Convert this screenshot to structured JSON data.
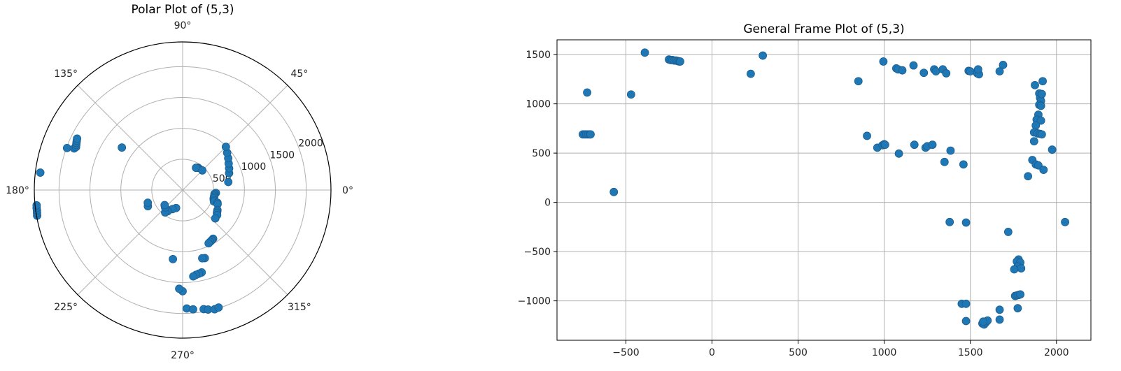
{
  "chart_data": [
    {
      "type": "scatter",
      "projection": "polar",
      "title": "Polar Plot of (5,3)",
      "theta_ticks_deg": [
        0,
        45,
        90,
        135,
        180,
        225,
        270,
        315
      ],
      "theta_labels": [
        "0°",
        "45°",
        "90°",
        "135°",
        "180°",
        "225°",
        "270°",
        "315°"
      ],
      "r_ticks": [
        500,
        1000,
        1500,
        2000
      ],
      "r_labels": [
        "500",
        "1000",
        "1500",
        "2000"
      ],
      "r_max": 2400,
      "r_label_angle_deg": 22.5,
      "grid": true,
      "marker_color": "#1f77b4",
      "points_theta_r": [
        [
          55,
          440
        ],
        [
          57,
          430
        ],
        [
          59,
          420
        ],
        [
          45,
          450
        ],
        [
          10,
          750
        ],
        [
          20,
          800
        ],
        [
          25,
          830
        ],
        [
          30,
          860
        ],
        [
          35,
          900
        ],
        [
          40,
          940
        ],
        [
          45,
          990
        ],
        [
          -5,
          540
        ],
        [
          -7,
          520
        ],
        [
          -10,
          520
        ],
        [
          -12,
          520
        ],
        [
          -15,
          520
        ],
        [
          -18,
          530
        ],
        [
          -20,
          540
        ],
        [
          -20,
          600
        ],
        [
          -22,
          610
        ],
        [
          -30,
          650
        ],
        [
          -32,
          660
        ],
        [
          -34,
          670
        ],
        [
          -36,
          690
        ],
        [
          -41,
          700
        ],
        [
          -58,
          930
        ],
        [
          -60,
          940
        ],
        [
          -62,
          950
        ],
        [
          -64,
          960
        ],
        [
          -72,
          1160
        ],
        [
          -74,
          1150
        ],
        [
          -77,
          1370
        ],
        [
          -79,
          1380
        ],
        [
          -81,
          1390
        ],
        [
          -83,
          1410
        ],
        [
          -88,
          1920
        ],
        [
          -85,
          1940
        ],
        [
          -80,
          1960
        ],
        [
          -78,
          1980
        ],
        [
          -75,
          2000
        ],
        [
          -73,
          1990
        ],
        [
          -90,
          1640
        ],
        [
          -92,
          1600
        ],
        [
          -98,
          1130
        ],
        [
          -110,
          310
        ],
        [
          -118,
          350
        ],
        [
          -125,
          420
        ],
        [
          -128,
          460
        ],
        [
          -135,
          400
        ],
        [
          -140,
          380
        ],
        [
          -155,
          620
        ],
        [
          -160,
          600
        ],
        [
          -170,
          2390
        ],
        [
          -171,
          2385
        ],
        [
          -172,
          2380
        ],
        [
          -173,
          2380
        ],
        [
          -174,
          2375
        ],
        [
          173,
          2320
        ],
        [
          159,
          1880
        ],
        [
          158,
          1860
        ],
        [
          157,
          1870
        ],
        [
          156,
          1880
        ],
        [
          155,
          1890
        ],
        [
          154,
          1900
        ],
        [
          160,
          1990
        ],
        [
          145,
          1200
        ]
      ]
    },
    {
      "type": "scatter",
      "title": "General Frame Plot of (5,3)",
      "xlim": [
        -900,
        2200
      ],
      "ylim": [
        -1400,
        1650
      ],
      "xticks": [
        -500,
        0,
        500,
        1000,
        1500,
        2000
      ],
      "xtick_labels": [
        "−500",
        "0",
        "500",
        "1000",
        "1500",
        "2000"
      ],
      "yticks": [
        -1000,
        -500,
        0,
        500,
        1000,
        1500
      ],
      "ytick_labels": [
        "−1000",
        "−500",
        "0",
        "500",
        "1000",
        "1500"
      ],
      "grid": true,
      "marker_color": "#1f77b4",
      "points": [
        [
          -390,
          1520
        ],
        [
          -250,
          1450
        ],
        [
          -240,
          1445
        ],
        [
          -230,
          1445
        ],
        [
          -220,
          1440
        ],
        [
          -210,
          1440
        ],
        [
          -200,
          1435
        ],
        [
          -190,
          1430
        ],
        [
          -185,
          1430
        ],
        [
          -725,
          1115
        ],
        [
          -470,
          1095
        ],
        [
          -750,
          690
        ],
        [
          -740,
          690
        ],
        [
          -730,
          690
        ],
        [
          -720,
          690
        ],
        [
          -710,
          690
        ],
        [
          -705,
          690
        ],
        [
          -570,
          105
        ],
        [
          225,
          1305
        ],
        [
          295,
          1490
        ],
        [
          850,
          1230
        ],
        [
          995,
          1430
        ],
        [
          1070,
          1360
        ],
        [
          1080,
          1350
        ],
        [
          1105,
          1340
        ],
        [
          1170,
          1390
        ],
        [
          1230,
          1315
        ],
        [
          1290,
          1350
        ],
        [
          1300,
          1330
        ],
        [
          1340,
          1350
        ],
        [
          1360,
          1310
        ],
        [
          1490,
          1335
        ],
        [
          1500,
          1330
        ],
        [
          1540,
          1310
        ],
        [
          1550,
          1300
        ],
        [
          1545,
          1350
        ],
        [
          1670,
          1330
        ],
        [
          1690,
          1395
        ],
        [
          900,
          675
        ],
        [
          960,
          555
        ],
        [
          990,
          580
        ],
        [
          1000,
          590
        ],
        [
          1005,
          585
        ],
        [
          1085,
          495
        ],
        [
          1175,
          585
        ],
        [
          1240,
          555
        ],
        [
          1250,
          570
        ],
        [
          1280,
          585
        ],
        [
          1350,
          410
        ],
        [
          1385,
          525
        ],
        [
          1460,
          385
        ],
        [
          1380,
          -200
        ],
        [
          1475,
          -205
        ],
        [
          1875,
          1190
        ],
        [
          1900,
          1105
        ],
        [
          1905,
          1060
        ],
        [
          1910,
          1030
        ],
        [
          1915,
          1100
        ],
        [
          1920,
          1230
        ],
        [
          1900,
          990
        ],
        [
          1910,
          980
        ],
        [
          1895,
          890
        ],
        [
          1885,
          840
        ],
        [
          1910,
          830
        ],
        [
          1880,
          780
        ],
        [
          1870,
          710
        ],
        [
          1890,
          700
        ],
        [
          1905,
          695
        ],
        [
          1915,
          690
        ],
        [
          1870,
          620
        ],
        [
          1975,
          535
        ],
        [
          1860,
          430
        ],
        [
          1880,
          385
        ],
        [
          1895,
          375
        ],
        [
          1925,
          330
        ],
        [
          1835,
          265
        ],
        [
          1720,
          -300
        ],
        [
          2050,
          -200
        ],
        [
          1780,
          -580
        ],
        [
          1770,
          -600
        ],
        [
          1790,
          -610
        ],
        [
          1775,
          -650
        ],
        [
          1795,
          -670
        ],
        [
          1755,
          -680
        ],
        [
          1760,
          -950
        ],
        [
          1770,
          -945
        ],
        [
          1780,
          -940
        ],
        [
          1790,
          -935
        ],
        [
          1775,
          -1075
        ],
        [
          1450,
          -1030
        ],
        [
          1475,
          -1030
        ],
        [
          1475,
          -1205
        ],
        [
          1670,
          -1090
        ],
        [
          1670,
          -1190
        ],
        [
          1570,
          -1230
        ],
        [
          1580,
          -1240
        ],
        [
          1590,
          -1220
        ],
        [
          1600,
          -1200
        ],
        [
          1575,
          -1210
        ]
      ]
    }
  ]
}
